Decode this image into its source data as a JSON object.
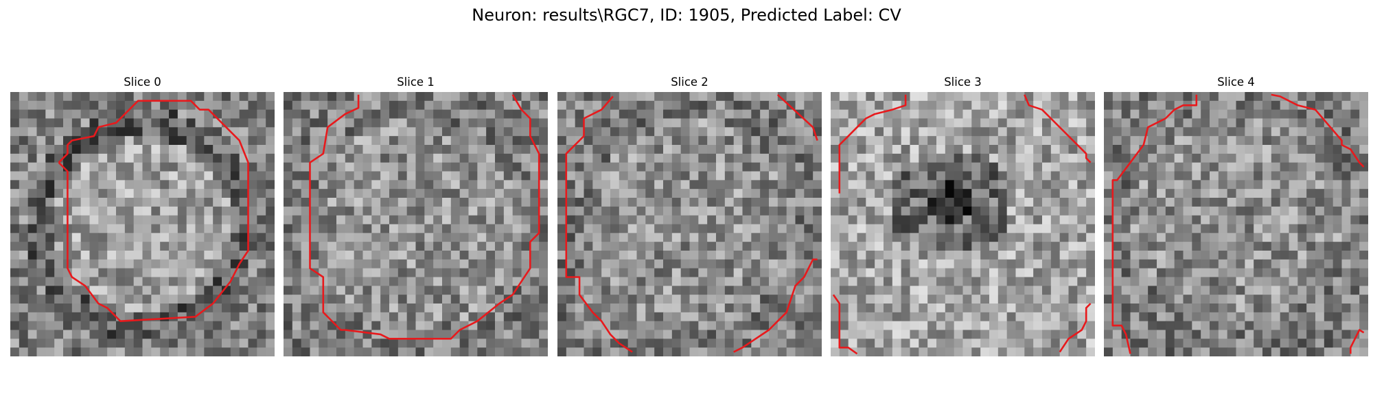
{
  "figure": {
    "title": "Neuron: results\\RGC7, ID: 1905, Predicted Label: CV"
  },
  "panels": [
    {
      "title": "Slice 0",
      "seed": 17,
      "pattern": "ring",
      "contour_color": "#e8191c"
    },
    {
      "title": "Slice 1",
      "seed": 42,
      "pattern": "noise",
      "contour_color": "#e8191c"
    },
    {
      "title": "Slice 2",
      "seed": 93,
      "pattern": "noise",
      "contour_color": "#e8191c"
    },
    {
      "title": "Slice 3",
      "seed": 7,
      "pattern": "dark-center",
      "contour_color": "#e8191c"
    },
    {
      "title": "Slice 4",
      "seed": 61,
      "pattern": "noise",
      "contour_color": "#e8191c"
    }
  ],
  "image_grid": {
    "cells": 30
  },
  "colors": {
    "contour": "#e8191c",
    "background": "#ffffff"
  }
}
